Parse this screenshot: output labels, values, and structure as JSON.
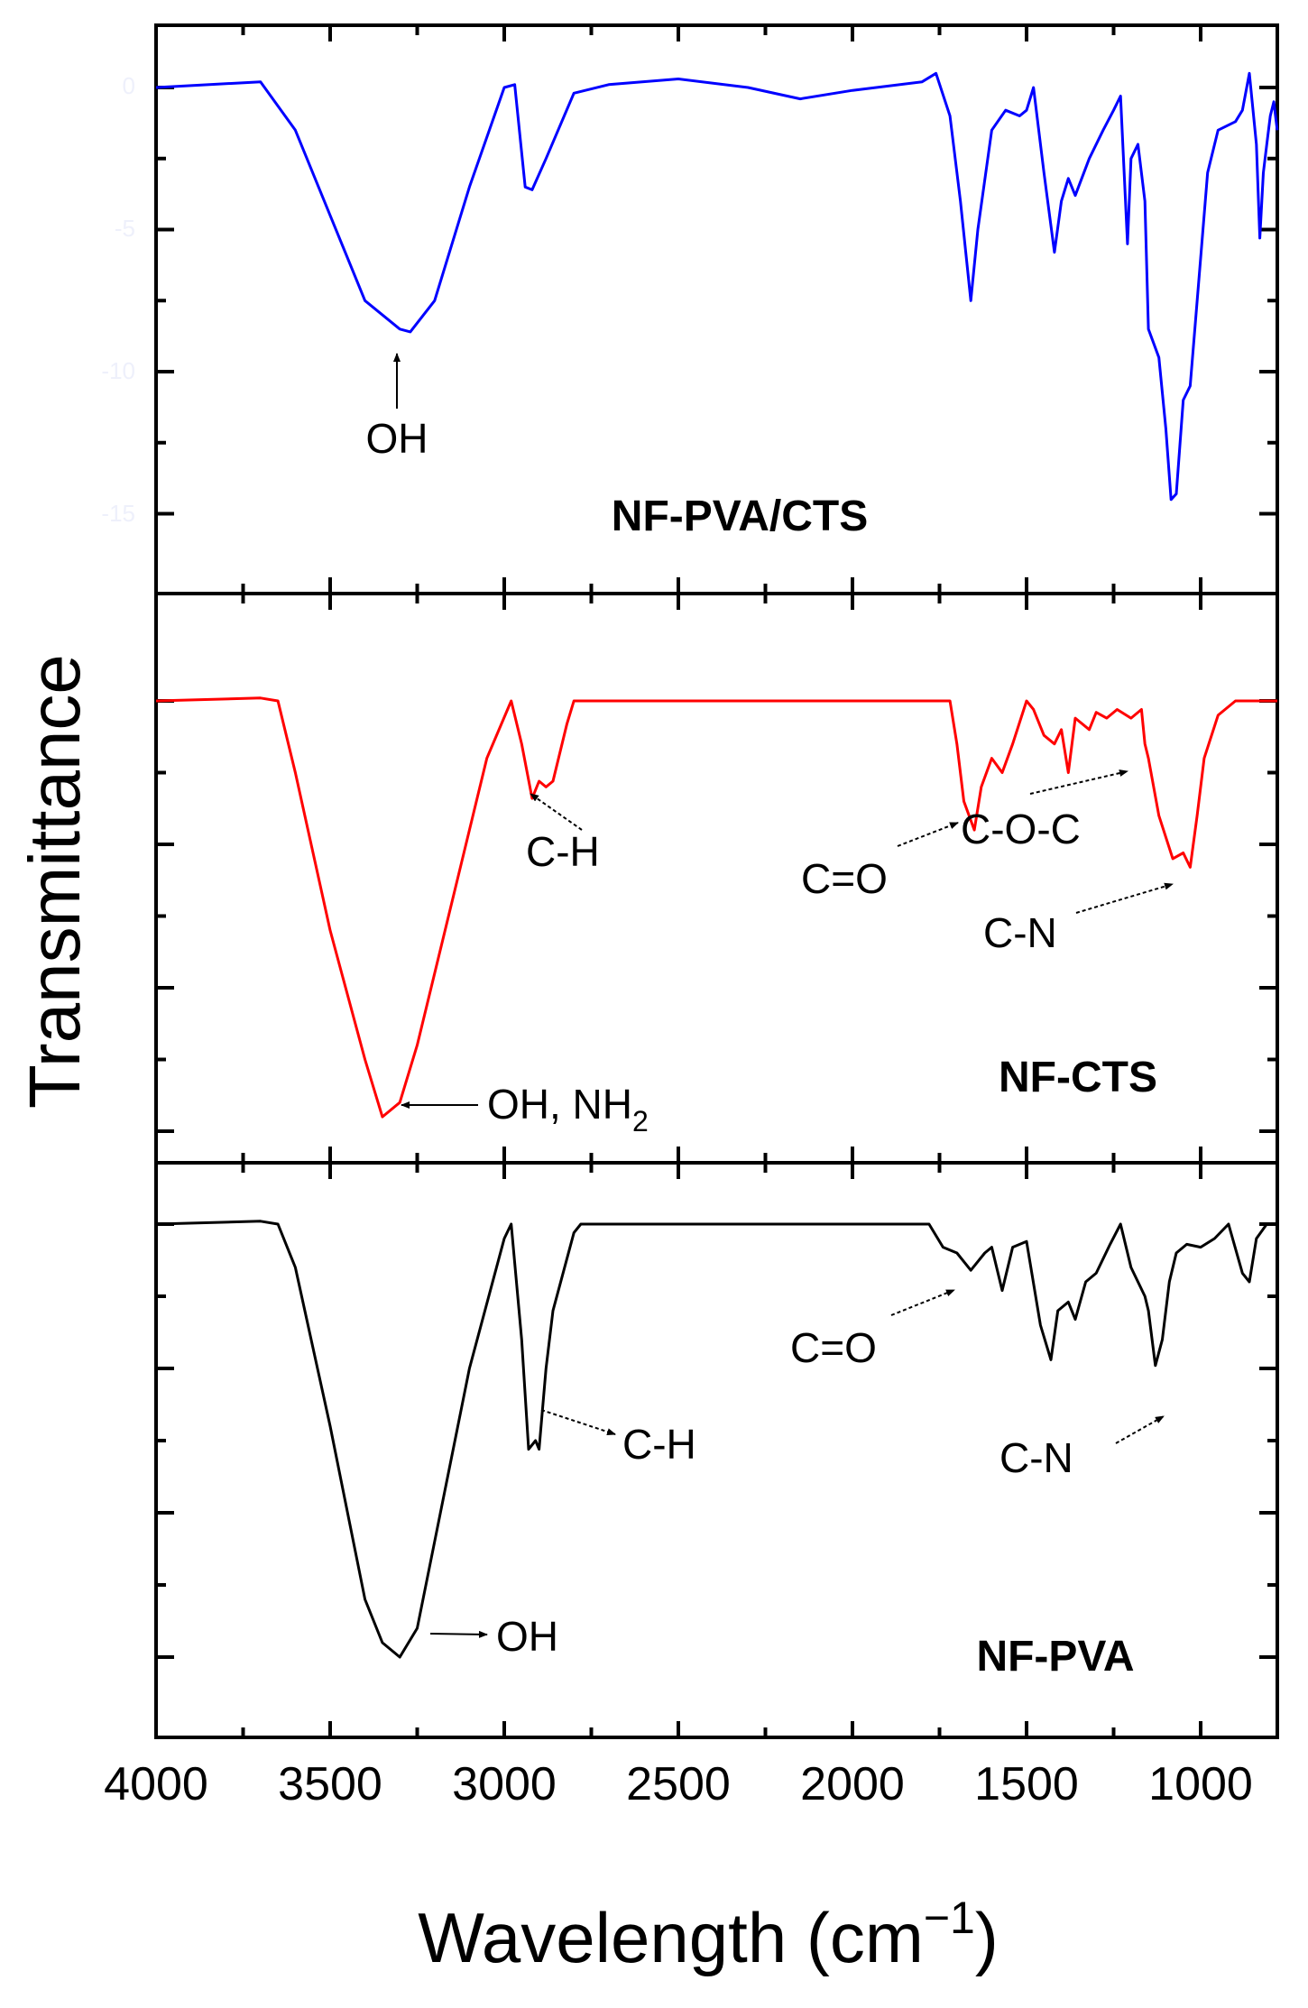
{
  "chart_data": {
    "type": "line",
    "title": "",
    "xlabel": "Wavelength (cm⁻¹)",
    "xlabel_main": "Wavelength (cm",
    "xlabel_sup": "−1",
    "xlabel_close": ")",
    "ylabel": "Transmittance",
    "xlim": [
      4000,
      780
    ],
    "x_reversed": true,
    "x_ticks": [
      4000,
      3500,
      3000,
      2500,
      2000,
      1500,
      1000
    ],
    "x_tick_labels": [
      "4000",
      "3500",
      "3000",
      "2500",
      "2000",
      "1500",
      "1000"
    ],
    "x_minor_step": 250,
    "grid": false,
    "legend": "none (panel labels inside plots)",
    "layout": "3 vertically stacked panels sharing x-axis",
    "panels": [
      {
        "name": "NF-PVA/CTS",
        "label": "NF-PVA/CTS",
        "color": "#0000ff",
        "y_tick_labels_faint": [
          "0",
          "-5",
          "-10",
          "-15"
        ],
        "x": [
          4000,
          3700,
          3600,
          3500,
          3400,
          3300,
          3270,
          3200,
          3100,
          3000,
          2970,
          2940,
          2920,
          2880,
          2800,
          2700,
          2500,
          2300,
          2150,
          2000,
          1800,
          1760,
          1720,
          1690,
          1660,
          1640,
          1600,
          1560,
          1520,
          1500,
          1480,
          1450,
          1420,
          1400,
          1380,
          1360,
          1320,
          1280,
          1250,
          1230,
          1210,
          1200,
          1180,
          1160,
          1150,
          1120,
          1100,
          1085,
          1070,
          1050,
          1030,
          1000,
          980,
          950,
          900,
          880,
          860,
          840,
          830,
          820,
          810,
          800,
          790,
          780
        ],
        "y": [
          0,
          0.2,
          -1.5,
          -4.5,
          -7.5,
          -8.5,
          -8.6,
          -7.5,
          -3.5,
          0,
          0.1,
          -3.5,
          -3.6,
          -2.5,
          -0.2,
          0.1,
          0.3,
          0,
          -0.4,
          -0.1,
          0.2,
          0.5,
          -1,
          -4,
          -7.5,
          -5,
          -1.5,
          -0.8,
          -1,
          -0.8,
          0,
          -3,
          -5.8,
          -4,
          -3.2,
          -3.8,
          -2.5,
          -1.5,
          -0.8,
          -0.3,
          -5.5,
          -2.5,
          -2,
          -4,
          -8.5,
          -9.5,
          -12,
          -14.5,
          -14.3,
          -11,
          -10.5,
          -6,
          -3,
          -1.5,
          -1.2,
          -0.8,
          0.5,
          -2,
          -5.3,
          -3,
          -2,
          -1,
          -0.5,
          -1.5
        ],
        "annotations": [
          {
            "text": "OH",
            "x": 3280,
            "arrow": "up"
          }
        ]
      },
      {
        "name": "NF-CTS",
        "label": "NF-CTS",
        "color": "#ff0000",
        "x": [
          4000,
          3700,
          3650,
          3600,
          3500,
          3400,
          3350,
          3300,
          3250,
          3150,
          3050,
          2980,
          2950,
          2920,
          2900,
          2880,
          2860,
          2820,
          2800,
          2000,
          1720,
          1700,
          1680,
          1650,
          1630,
          1600,
          1570,
          1540,
          1500,
          1480,
          1450,
          1420,
          1400,
          1380,
          1360,
          1320,
          1300,
          1270,
          1240,
          1200,
          1170,
          1160,
          1150,
          1120,
          1080,
          1050,
          1030,
          1010,
          990,
          950,
          900,
          850,
          780
        ],
        "y": [
          0,
          0.1,
          0,
          -2.5,
          -8,
          -12.5,
          -14.5,
          -14,
          -12,
          -7,
          -2,
          0,
          -1.5,
          -3.4,
          -2.8,
          -3,
          -2.8,
          -0.8,
          0,
          0,
          0,
          -1.5,
          -3.5,
          -4.5,
          -3,
          -2,
          -2.5,
          -1.5,
          0,
          -0.3,
          -1.2,
          -1.5,
          -1,
          -2.5,
          -0.6,
          -1,
          -0.4,
          -0.6,
          -0.3,
          -0.6,
          -0.3,
          -1.5,
          -2,
          -4,
          -5.5,
          -5.3,
          -5.8,
          -4,
          -2,
          -0.5,
          0,
          0,
          0
        ],
        "annotations": [
          {
            "text": "C-H",
            "x": 2900
          },
          {
            "text": "OH, NH₂",
            "x": 3300
          },
          {
            "text": "C=O",
            "x": 1650
          },
          {
            "text": "C-O-C",
            "x": 1160
          },
          {
            "text": "C-N",
            "x": 1030
          }
        ]
      },
      {
        "name": "NF-PVA",
        "label": "NF-PVA",
        "color": "#000000",
        "x": [
          4000,
          3700,
          3650,
          3600,
          3500,
          3400,
          3350,
          3300,
          3250,
          3200,
          3100,
          3000,
          2980,
          2950,
          2930,
          2910,
          2900,
          2880,
          2860,
          2800,
          2780,
          2000,
          1780,
          1740,
          1700,
          1660,
          1620,
          1600,
          1570,
          1540,
          1500,
          1460,
          1430,
          1410,
          1380,
          1360,
          1330,
          1300,
          1260,
          1230,
          1200,
          1160,
          1150,
          1130,
          1110,
          1090,
          1070,
          1040,
          1000,
          960,
          920,
          880,
          860,
          840,
          810,
          790,
          780
        ],
        "y": [
          0,
          0.1,
          0,
          -1.5,
          -7,
          -13,
          -14.5,
          -15,
          -14,
          -11,
          -5,
          -0.5,
          0,
          -4,
          -7.8,
          -7.5,
          -7.8,
          -5,
          -3,
          -0.3,
          0,
          0,
          0,
          -0.8,
          -1,
          -1.6,
          -1,
          -0.8,
          -2.3,
          -0.8,
          -0.6,
          -3.5,
          -4.7,
          -3,
          -2.7,
          -3.3,
          -2,
          -1.7,
          -0.7,
          0,
          -1.5,
          -2.5,
          -3,
          -4.9,
          -4,
          -2,
          -1,
          -0.7,
          -0.8,
          -0.5,
          0,
          -1.7,
          -2,
          -0.5,
          0,
          0,
          0
        ],
        "annotations": [
          {
            "text": "C-H",
            "x": 2910
          },
          {
            "text": "OH",
            "x": 3300
          },
          {
            "text": "C=O",
            "x": 1670
          },
          {
            "text": "C-N",
            "x": 1090
          }
        ]
      }
    ]
  },
  "labels": {
    "ylabel": "Transmittance",
    "xlabel_main": "Wavelength (cm",
    "xlabel_sup": "−1",
    "xlabel_close": ")",
    "panel_top": "NF-PVA/CTS",
    "panel_mid": "NF-CTS",
    "panel_bot": "NF-PVA",
    "ann_top_oh": "OH",
    "ann_mid_ch": "C-H",
    "ann_mid_oh": "OH, NH",
    "ann_mid_oh_sub": "2",
    "ann_mid_co": "C=O",
    "ann_mid_coc": "C-O-C",
    "ann_mid_cn": "C-N",
    "ann_bot_co": "C=O",
    "ann_bot_cn": "C-N",
    "ann_bot_ch": "C-H",
    "ann_bot_oh": "OH",
    "xtick_0": "4000",
    "xtick_1": "3500",
    "xtick_2": "3000",
    "xtick_3": "2500",
    "xtick_4": "2000",
    "xtick_5": "1500",
    "xtick_6": "1000",
    "ytick_0": "0",
    "ytick_1": "-5",
    "ytick_2": "-10",
    "ytick_3": "-15"
  }
}
